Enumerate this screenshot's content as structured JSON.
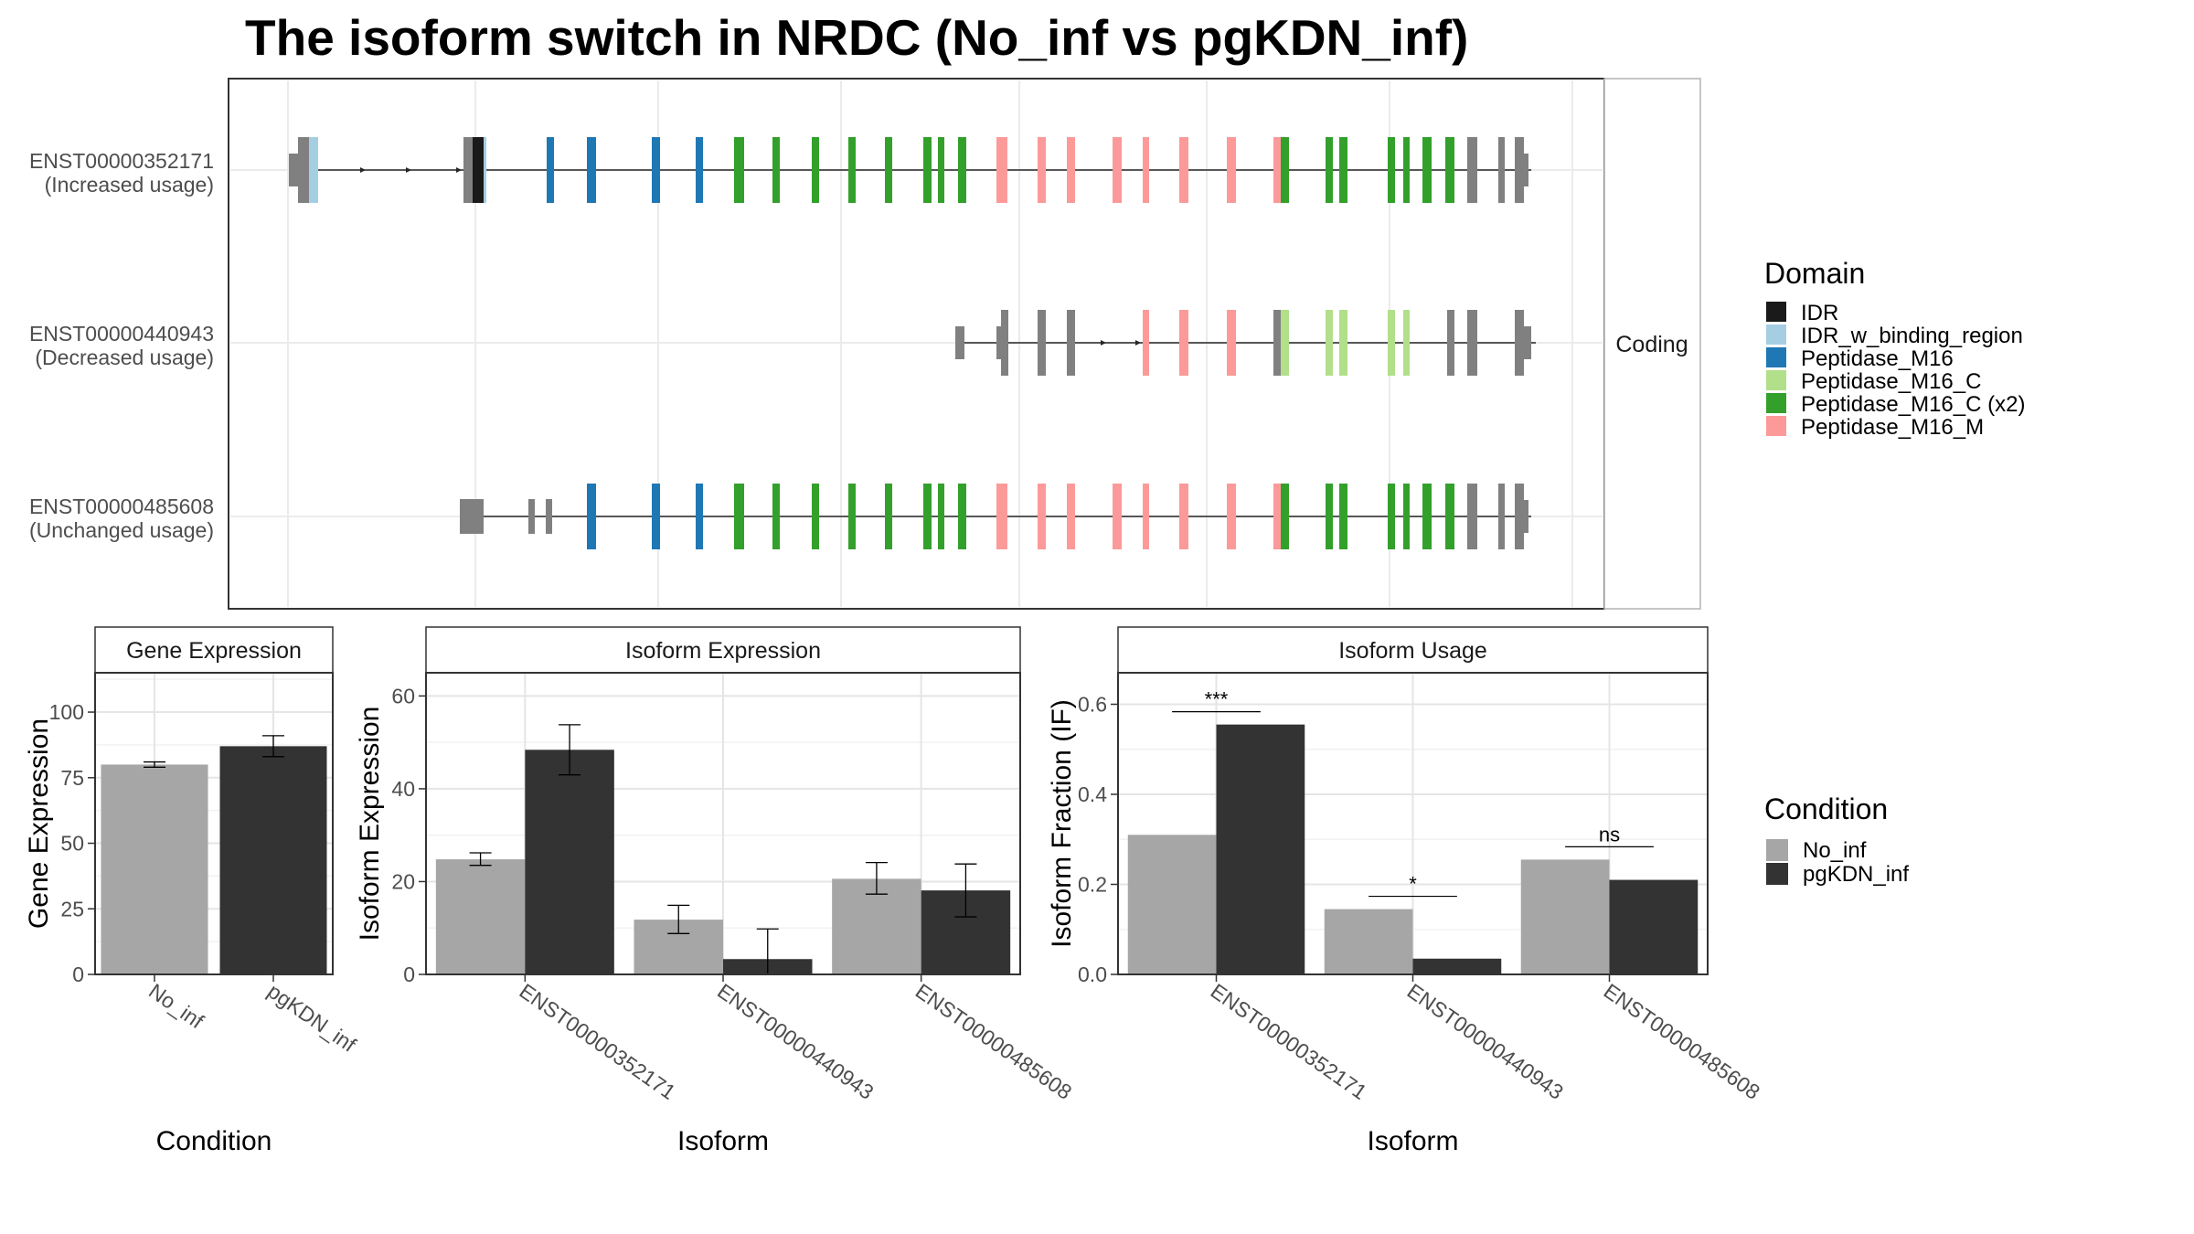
{
  "title": "The isoform switch in NRDC (No_inf vs pgKDN_inf)",
  "colors": {
    "no_inf": "#a6a6a6",
    "pgkdn_inf": "#333333",
    "intron": "#262626",
    "no_domain": "#808080",
    "IDR": "#1a1a1a",
    "IDR_w_binding_region": "#a6cee3",
    "Peptidase_M16": "#1f78b4",
    "Peptidase_M16_C": "#b2df8a",
    "Peptidase_M16_C (x2)": "#33a02c",
    "Peptidase_M16_M": "#fb9a99"
  },
  "isoform_panel": {
    "strip_label": "Coding",
    "isoforms": [
      {
        "id": "ENST00000352171",
        "usage": "(Increased usage)"
      },
      {
        "id": "ENST00000440943",
        "usage": "(Decreased usage)"
      },
      {
        "id": "ENST00000485608",
        "usage": "(Unchanged usage)"
      }
    ]
  },
  "domain_legend": {
    "title": "Domain",
    "entries": [
      "IDR",
      "IDR_w_binding_region",
      "Peptidase_M16",
      "Peptidase_M16_C",
      "Peptidase_M16_C (x2)",
      "Peptidase_M16_M"
    ]
  },
  "condition_legend": {
    "title": "Condition",
    "entries": [
      "No_inf",
      "pgKDN_inf"
    ]
  },
  "chart_data": [
    {
      "type": "bar",
      "panel": "Gene Expression",
      "categories": [
        "No_inf",
        "pgKDN_inf"
      ],
      "values": [
        80,
        87
      ],
      "errors": [
        [
          79,
          81
        ],
        [
          83,
          91
        ]
      ],
      "xlabel": "Condition",
      "ylabel": "Gene Expression",
      "ylim": [
        0,
        115
      ],
      "yticks": [
        0,
        25,
        50,
        75,
        100
      ]
    },
    {
      "type": "bar",
      "panel": "Isoform Expression",
      "categories": [
        "ENST00000352171",
        "ENST00000440943",
        "ENST00000485608"
      ],
      "series": [
        {
          "name": "No_inf",
          "values": [
            24.8,
            11.8,
            20.6
          ],
          "errors": [
            [
              23.5,
              26.2
            ],
            [
              8.8,
              14.9
            ],
            [
              17.3,
              24.1
            ]
          ]
        },
        {
          "name": "pgKDN_inf",
          "values": [
            48.4,
            3.3,
            18.1
          ],
          "errors": [
            [
              43.0,
              53.8
            ],
            [
              0.0,
              9.8
            ],
            [
              12.4,
              23.8
            ]
          ]
        }
      ],
      "xlabel": "Isoform",
      "ylabel": "Isoform Expression",
      "ylim": [
        0,
        65
      ],
      "yticks": [
        0,
        20,
        40,
        60
      ]
    },
    {
      "type": "bar",
      "panel": "Isoform Usage",
      "categories": [
        "ENST00000352171",
        "ENST00000440943",
        "ENST00000485608"
      ],
      "series": [
        {
          "name": "No_inf",
          "values": [
            0.31,
            0.145,
            0.255
          ]
        },
        {
          "name": "pgKDN_inf",
          "values": [
            0.555,
            0.035,
            0.21
          ]
        }
      ],
      "significance": [
        "***",
        "*",
        "ns"
      ],
      "xlabel": "Isoform",
      "ylabel": "Isoform Fraction (IF)",
      "ylim": [
        0,
        0.67
      ],
      "yticks": [
        "0.0",
        "0.2",
        "0.4",
        "0.6"
      ]
    }
  ]
}
